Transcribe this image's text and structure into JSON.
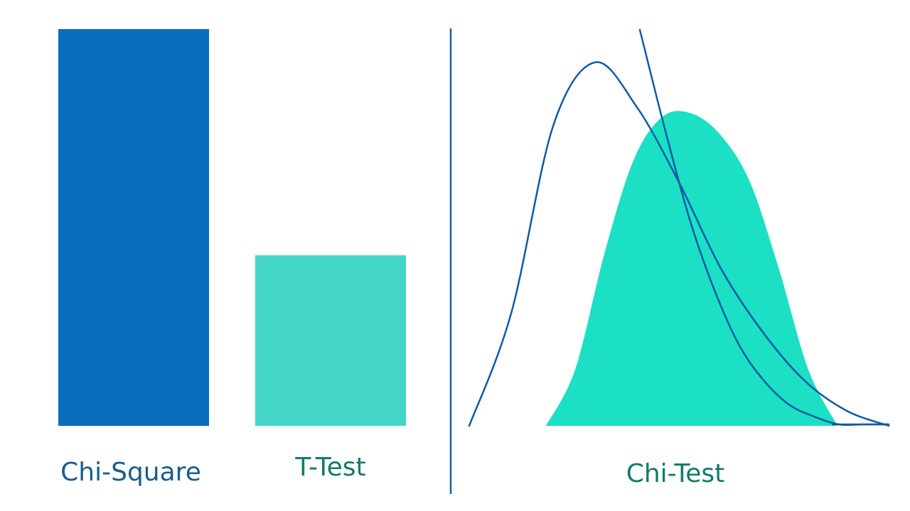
{
  "colors": {
    "background": "#ffffff",
    "bar_primary": "#0a6cbd",
    "bar_secondary": "#43d6c7",
    "area_fill": "#1be0c4",
    "curve_stroke": "#1059a8",
    "divider": "#1c5fa0",
    "label_blue": "#1a5c8e",
    "label_teal": "#12796d"
  },
  "chart_data": [
    {
      "type": "bar",
      "categories": [
        "Chi-Square",
        "T-Test"
      ],
      "values": [
        100,
        43
      ],
      "ylim": [
        0,
        100
      ],
      "grid": false,
      "legend": "none"
    },
    {
      "type": "area",
      "label": "Chi-Test",
      "series": [
        {
          "kind": "filled-distribution",
          "x": [
            0.0,
            0.1,
            0.2,
            0.3,
            0.4,
            0.5,
            0.6,
            0.7,
            0.8,
            0.9,
            1.0
          ],
          "y": [
            0.0,
            0.18,
            0.55,
            0.85,
            0.99,
            1.0,
            0.93,
            0.78,
            0.5,
            0.18,
            0.0
          ]
        },
        {
          "kind": "outline-distribution",
          "x": [
            0.0,
            0.1,
            0.2,
            0.3,
            0.4,
            0.5,
            0.6,
            0.7,
            0.8,
            0.9,
            1.0
          ],
          "y": [
            0.0,
            0.3,
            0.8,
            0.97,
            0.85,
            0.65,
            0.42,
            0.25,
            0.12,
            0.04,
            0.0
          ]
        },
        {
          "kind": "outline-decreasing",
          "x": [
            0.0,
            0.1,
            0.2,
            0.3,
            0.4,
            0.5,
            0.6,
            0.7,
            0.8,
            0.9,
            1.0
          ],
          "y": [
            1.0,
            0.75,
            0.52,
            0.34,
            0.2,
            0.11,
            0.05,
            0.02,
            0.0,
            0.0,
            0.0
          ]
        }
      ],
      "grid": false,
      "legend": "none"
    }
  ]
}
